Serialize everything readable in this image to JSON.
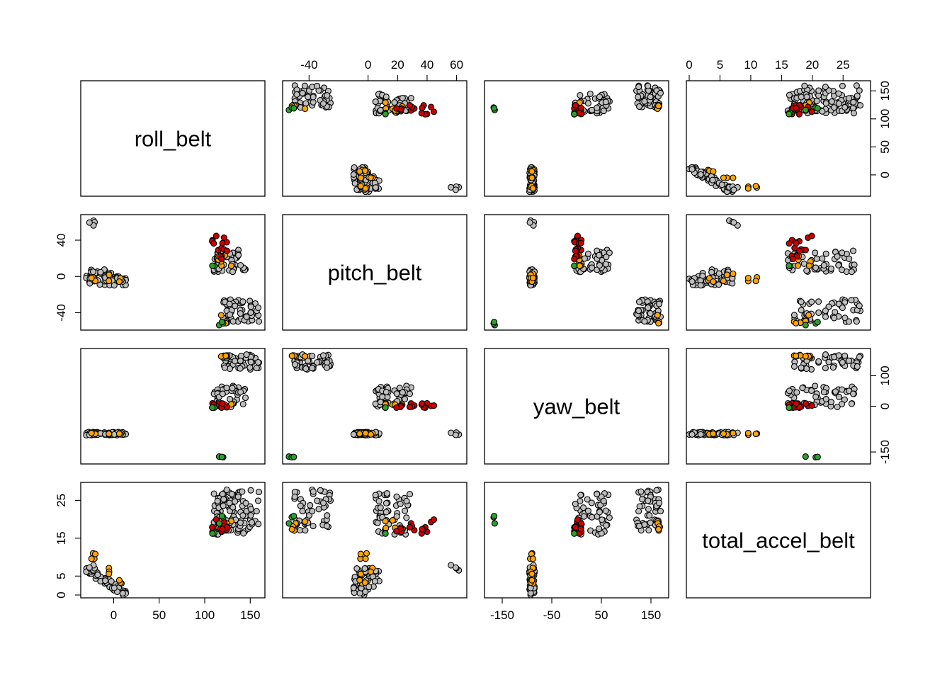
{
  "chart_data": {
    "type": "scatter",
    "subtype": "scatterplot-matrix",
    "variables": [
      "roll_belt",
      "pitch_belt",
      "yaw_belt",
      "total_accel_belt"
    ],
    "ranges": {
      "roll_belt": [
        -33,
        163
      ],
      "pitch_belt": [
        -56,
        65
      ],
      "yaw_belt": [
        -180,
        180
      ],
      "total_accel_belt": [
        0,
        29
      ]
    },
    "ticks": {
      "roll_belt": [
        0,
        50,
        100,
        150
      ],
      "pitch_belt": [
        -40,
        0,
        40
      ],
      "pitch_belt_top": [
        -40,
        0,
        20,
        40,
        60
      ],
      "yaw_belt": [
        -150,
        -50,
        50,
        150
      ],
      "yaw_belt_right": [
        -150,
        0,
        100
      ],
      "total_accel_belt": [
        0,
        5,
        15,
        25
      ],
      "total_accel_belt_top": [
        0,
        5,
        10,
        15,
        20,
        25
      ]
    },
    "classes": [
      "grey",
      "orange",
      "red",
      "green"
    ],
    "colors": {
      "grey": "#bebebe",
      "orange": "#ffa500",
      "red": "#cd0000",
      "green": "#2ca02c"
    },
    "clusters": [
      {
        "class": "grey",
        "n": 60,
        "roll": [
          -30,
          15
        ],
        "pitch": [
          -10,
          8
        ],
        "yaw": [
          -95,
          -85
        ],
        "acc": [
          0,
          7
        ],
        "link": "roll-acc-neg"
      },
      {
        "class": "orange",
        "n": 10,
        "roll": [
          -25,
          18
        ],
        "pitch": [
          -6,
          4
        ],
        "yaw": [
          -95,
          -85
        ],
        "acc": [
          1,
          11
        ],
        "link": "roll-acc-neg"
      },
      {
        "class": "grey",
        "n": 4,
        "roll": [
          -30,
          -20
        ],
        "pitch": [
          55,
          62
        ],
        "yaw": [
          -95,
          -85
        ],
        "acc": [
          5,
          10
        ]
      },
      {
        "class": "grey",
        "n": 50,
        "roll": [
          110,
          145
        ],
        "pitch": [
          5,
          30
        ],
        "yaw": [
          -10,
          70
        ],
        "acc": [
          16,
          27
        ]
      },
      {
        "class": "red",
        "n": 14,
        "roll": [
          108,
          125
        ],
        "pitch": [
          15,
          45
        ],
        "yaw": [
          -5,
          10
        ],
        "acc": [
          16,
          20
        ]
      },
      {
        "class": "orange",
        "n": 6,
        "roll": [
          115,
          130
        ],
        "pitch": [
          10,
          30
        ],
        "yaw": [
          0,
          10
        ],
        "acc": [
          17,
          20
        ]
      },
      {
        "class": "grey",
        "n": 50,
        "roll": [
          120,
          160
        ],
        "pitch": [
          -50,
          -25
        ],
        "yaw": [
          120,
          170
        ],
        "acc": [
          17,
          28
        ]
      },
      {
        "class": "orange",
        "n": 5,
        "roll": [
          118,
          125
        ],
        "pitch": [
          -52,
          -40
        ],
        "yaw": [
          160,
          168
        ],
        "acc": [
          17,
          20
        ]
      },
      {
        "class": "green",
        "n": 3,
        "roll": [
          115,
          122
        ],
        "pitch": [
          -55,
          -50
        ],
        "yaw": [
          -170,
          -165
        ],
        "acc": [
          15,
          21
        ]
      },
      {
        "class": "green",
        "n": 2,
        "roll": [
          108,
          112
        ],
        "pitch": [
          10,
          16
        ],
        "yaw": [
          -5,
          0
        ],
        "acc": [
          15,
          17
        ]
      }
    ]
  }
}
